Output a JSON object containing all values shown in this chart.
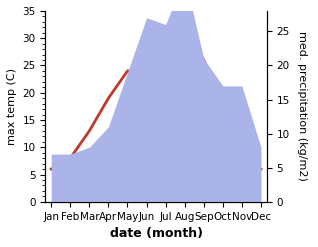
{
  "months": [
    "Jan",
    "Feb",
    "Mar",
    "Apr",
    "May",
    "Jun",
    "Jul",
    "Aug",
    "Sep",
    "Oct",
    "Nov",
    "Dec"
  ],
  "temp": [
    6,
    8,
    13,
    19,
    24,
    24,
    30,
    32,
    26,
    19,
    8,
    6
  ],
  "precip": [
    7,
    7,
    8,
    11,
    19,
    27,
    26,
    33,
    21,
    17,
    17,
    8
  ],
  "temp_color": "#c0392b",
  "precip_color": "#aab4e8",
  "precip_edge_color": "#aab4e8",
  "ylabel_left": "max temp (C)",
  "ylabel_right": "med. precipitation (kg/m2)",
  "xlabel": "date (month)",
  "ylim_left": [
    0,
    35
  ],
  "ylim_right": [
    0,
    28
  ],
  "yticks_left": [
    0,
    5,
    10,
    15,
    20,
    25,
    30,
    35
  ],
  "yticks_right": [
    0,
    5,
    10,
    15,
    20,
    25
  ],
  "bg_color": "#ffffff",
  "temp_linewidth": 2.0,
  "xlabel_fontsize": 9,
  "ylabel_fontsize": 8,
  "tick_fontsize": 7.5
}
